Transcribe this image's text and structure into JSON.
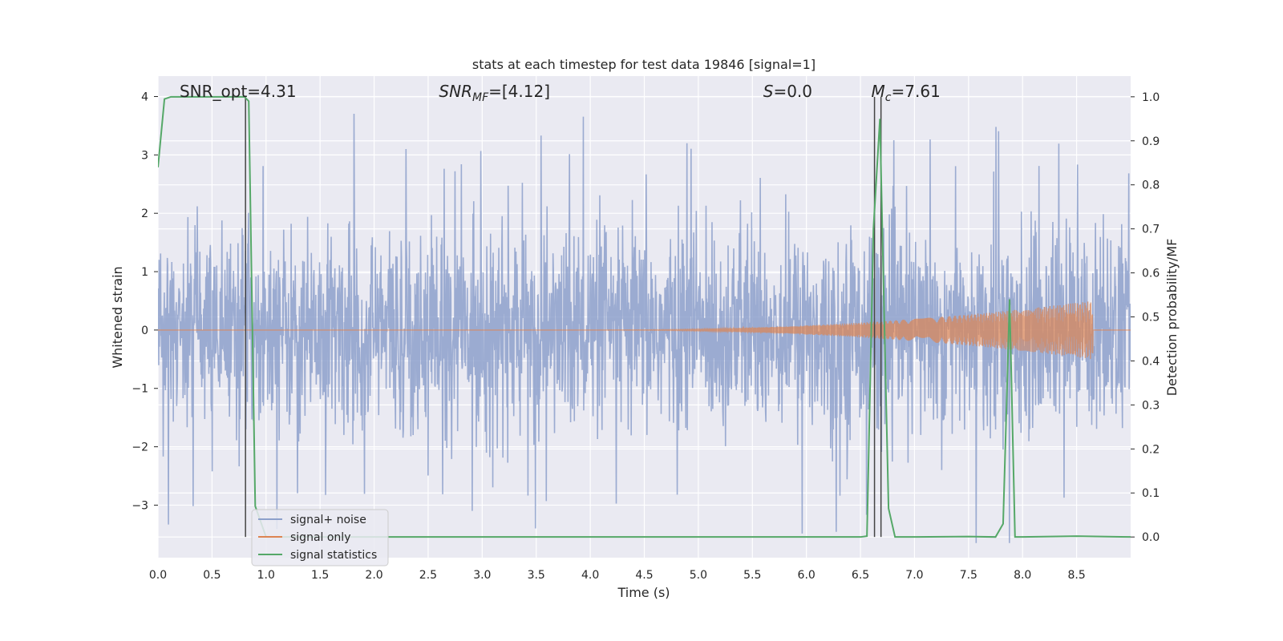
{
  "chart_data": {
    "type": "line",
    "title": "stats at each timestep for test data 19846 [signal=1]",
    "xlabel": "Time (s)",
    "ylabel_left": "Whitened strain",
    "ylabel_right": "Detection probability/MF",
    "xlim": [
      0.0,
      9.0
    ],
    "ylim_left": [
      -3.9,
      4.35
    ],
    "ylim_right": [
      -0.047,
      1.047
    ],
    "x_ticks": [
      "0.0",
      "0.5",
      "1.0",
      "1.5",
      "2.0",
      "2.5",
      "3.0",
      "3.5",
      "4.0",
      "4.5",
      "5.0",
      "5.5",
      "6.0",
      "6.5",
      "7.0",
      "7.5",
      "8.0",
      "8.5"
    ],
    "y_left_ticks": [
      "4",
      "3",
      "2",
      "1",
      "0",
      "−1",
      "−2",
      "−3"
    ],
    "y_right_ticks": [
      "1.0",
      "0.9",
      "0.8",
      "0.7",
      "0.6",
      "0.5",
      "0.4",
      "0.3",
      "0.2",
      "0.1",
      "0.0"
    ],
    "grid": true,
    "legend_position": "lower-left",
    "annotations": [
      {
        "label": "SNR_opt=4.31",
        "x": 0.2
      },
      {
        "label": "SNR",
        "sub": "MF",
        "suffix": "=[4.12]",
        "x": 2.6,
        "italic": true
      },
      {
        "label": "S",
        "suffix": "=0.0",
        "x": 5.6,
        "italic": true
      },
      {
        "label": "M",
        "sub": "c",
        "suffix": "=7.61",
        "x": 6.6,
        "italic": true
      }
    ],
    "vertical_markers_x": [
      0.81,
      6.63,
      6.69
    ],
    "series": [
      {
        "name": "signal+ noise",
        "color": "#8da0cb",
        "axis": "left",
        "description_values": {
          "noise_std": 0.85,
          "peak_high": 3.9,
          "peak_low": -3.65
        }
      },
      {
        "name": "signal only",
        "color": "#dd8452",
        "axis": "left",
        "chirp": {
          "start_x": 4.0,
          "end_x": 8.65,
          "end_amplitude": 0.5
        }
      },
      {
        "name": "signal statistics",
        "color": "#55a868",
        "axis": "right",
        "x": [
          0.0,
          0.06,
          0.12,
          0.2,
          0.3,
          0.4,
          0.5,
          0.6,
          0.7,
          0.8,
          0.84,
          0.9,
          1.0,
          1.5,
          2.0,
          3.0,
          4.0,
          5.0,
          6.0,
          6.5,
          6.56,
          6.62,
          6.68,
          6.72,
          6.76,
          6.82,
          7.0,
          7.5,
          7.75,
          7.82,
          7.88,
          7.93,
          8.0,
          8.5,
          9.0
        ],
        "y": [
          0.84,
          0.995,
          1.0,
          1.0,
          1.0,
          1.0,
          1.0,
          1.0,
          1.0,
          1.0,
          0.99,
          0.07,
          0.0,
          0.0,
          0.0,
          0.0,
          0.0,
          0.0,
          0.0,
          0.0,
          0.002,
          0.7,
          0.95,
          0.5,
          0.065,
          0.0,
          0.0,
          0.001,
          0.0,
          0.03,
          0.54,
          0.0,
          0.0,
          0.002,
          0.0
        ]
      }
    ]
  }
}
